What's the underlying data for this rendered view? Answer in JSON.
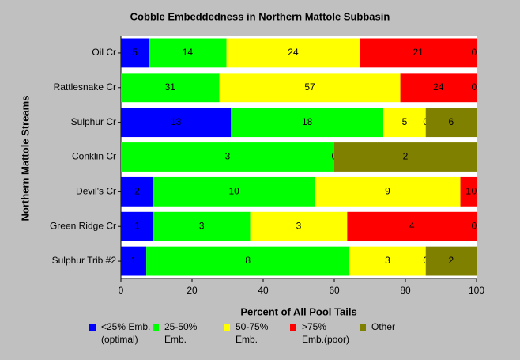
{
  "chart_data": {
    "type": "bar",
    "orientation": "horizontal",
    "stacking": "percent",
    "title": "Cobble Embeddedness in Northern Mattole Subbasin",
    "ylabel": "Northern Mattole Streams",
    "xlabel": "Percent of All Pool Tails",
    "categories": [
      "Oil Cr",
      "Rattlesnake Cr",
      "Sulphur Cr",
      "Conklin Cr",
      "Devil's Cr",
      "Green Ridge Cr",
      "Sulphur Trib #2"
    ],
    "series": [
      {
        "name": "<25% Emb.\n(optimal)",
        "color": "#0000ff",
        "values": [
          5,
          0,
          13,
          0,
          2,
          1,
          1
        ]
      },
      {
        "name": "25-50%\nEmb.",
        "color": "#00ff00",
        "values": [
          14,
          31,
          18,
          3,
          10,
          3,
          8
        ]
      },
      {
        "name": "50-75%\nEmb.",
        "color": "#ffff00",
        "values": [
          24,
          57,
          5,
          0,
          9,
          3,
          3
        ]
      },
      {
        "name": ">75%\nEmb.(poor)",
        "color": "#ff0000",
        "values": [
          21,
          24,
          0,
          0,
          1,
          4,
          0
        ]
      },
      {
        "name": "Other",
        "color": "#808000",
        "values": [
          0,
          0,
          6,
          2,
          0,
          0,
          2
        ]
      }
    ],
    "xlim": [
      0,
      100
    ],
    "xticks": [
      0,
      20,
      40,
      60,
      80,
      100
    ]
  }
}
